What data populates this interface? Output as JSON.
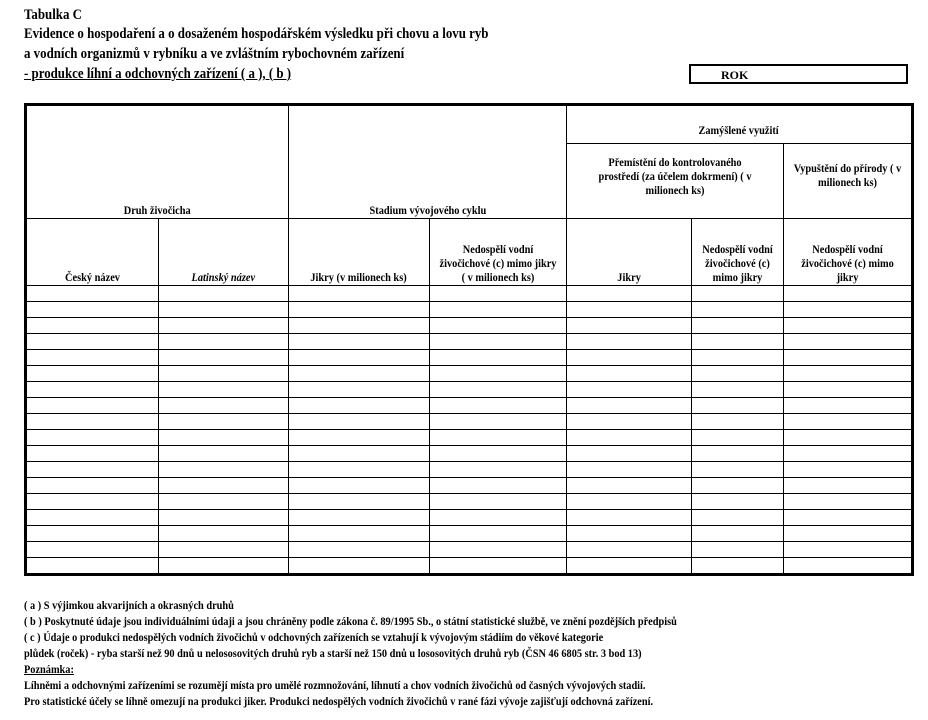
{
  "header": {
    "table_label": "Tabulka C",
    "title_line1": "Evidence o hospodaření a o dosaženém hospodářském výsledku při chovu a lovu ryb",
    "title_line2": "a vodních organizmů v rybníku a ve zvláštním rybochovném zařízení",
    "subtitle": " - produkce líhní a odchovných zařízení ( a ), ( b )",
    "year_label": "ROK"
  },
  "table": {
    "group_species": "Druh živočicha",
    "group_stage": "Stadium vývojového cyklu",
    "group_use": "Zamýšlené využití",
    "sub_transfer": "Přemístění do kontrolovaného prostředí   (za účelem dokrmení) ( v milionech ks)",
    "sub_release": "Vypuštění do přírody ( v milionech ks)",
    "columns": [
      "Český název",
      "Latinský název",
      "Jikry (v milionech ks)",
      "Nedospělí vodní živočichové (c) mimo jikry ( v milionech ks)",
      "Jikry",
      "Nedospělí vodní živočichové (c) mimo jikry",
      "Nedospělí vodní živočichové (c) mimo jikry"
    ],
    "empty_rows": 18
  },
  "footnotes": [
    "( a ) S výjimkou akvarijních a okrasných druhů",
    "( b ) Poskytnuté údaje jsou individuálními údaji a jsou chráněny podle zákona č. 89/1995 Sb.,  o státní statistické službě, ve znění pozdějších předpisů",
    "( c )  Údaje o produkci nedospělých  vodních živočichů v odchovných zařízeních se vztahují k vývojovým stádiím do věkové kategorie",
    " plůdek (roček)  -  ryba starší než 90 dnů u nelososovitých druhů ryb a starší než 150 dnů u lososovitých druhů ryb (ČSN 46 6805 str. 3 bod 13)"
  ],
  "note": {
    "heading": "Poznámka:",
    "lines": [
      "Líhněmi a odchovnými zařízeními se rozumějí místa pro umělé rozmnožování, líhnutí a chov vodních živočichů od časných vývojových stadií.",
      "Pro statistické účely se líhně omezují na produkci jiker. Produkci nedospělých vodních živočichů v rané fázi vývoje zajišťují odchovná zařízení."
    ]
  }
}
